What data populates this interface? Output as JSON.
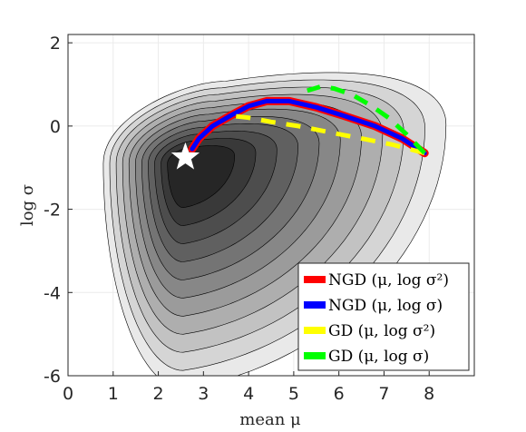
{
  "chart_data": {
    "type": "contour",
    "xlabel": "mean μ",
    "ylabel": "log σ",
    "xlim": [
      0,
      9
    ],
    "ylim": [
      -6,
      2.2
    ],
    "xticks": [
      0,
      1,
      2,
      3,
      4,
      5,
      6,
      7,
      8
    ],
    "yticks": [
      -6,
      -4,
      -2,
      0,
      2
    ],
    "xtick_labels": [
      "0",
      "1",
      "2",
      "3",
      "4",
      "5",
      "6",
      "7",
      "8"
    ],
    "ytick_labels": [
      "-6",
      "-4",
      "-2",
      "0",
      "2"
    ],
    "grid": true,
    "optimum": {
      "x": 2.6,
      "y": -0.75,
      "marker": "star",
      "color": "#ffffff"
    },
    "contour_levels": 11,
    "contour_center": {
      "x": 2.55,
      "y": -0.9
    },
    "series": [
      {
        "name": "NGD (μ, log σ²)",
        "color": "#ff0000",
        "style": "solid",
        "x": [
          7.9,
          7.4,
          6.8,
          6.1,
          5.5,
          4.9,
          4.4,
          4.0,
          3.6,
          3.2,
          2.9,
          2.75
        ],
        "y": [
          -0.65,
          -0.3,
          0.0,
          0.25,
          0.45,
          0.6,
          0.6,
          0.48,
          0.25,
          0.0,
          -0.3,
          -0.55
        ]
      },
      {
        "name": "NGD (μ, log σ)",
        "color": "#0000ff",
        "style": "solid",
        "x": [
          7.9,
          7.4,
          6.8,
          6.1,
          5.5,
          4.9,
          4.4,
          4.0,
          3.6,
          3.2,
          2.9,
          2.75
        ],
        "y": [
          -0.65,
          -0.3,
          0.0,
          0.25,
          0.45,
          0.6,
          0.6,
          0.48,
          0.25,
          0.0,
          -0.3,
          -0.55
        ]
      },
      {
        "name": "GD (μ, log σ²)",
        "color": "#ffff00",
        "style": "dashed",
        "x": [
          7.9,
          7.2,
          6.5,
          5.8,
          5.1,
          4.5,
          4.0,
          3.6
        ],
        "y": [
          -0.65,
          -0.45,
          -0.3,
          -0.15,
          0.0,
          0.1,
          0.2,
          0.25
        ]
      },
      {
        "name": "GD (μ, log σ)",
        "color": "#00ff00",
        "style": "dashed",
        "x": [
          7.9,
          7.5,
          7.1,
          6.7,
          6.3,
          5.9,
          5.6,
          5.3
        ],
        "y": [
          -0.65,
          -0.2,
          0.2,
          0.5,
          0.75,
          0.9,
          0.95,
          0.85
        ]
      }
    ],
    "legend": {
      "placement": "bottom-right"
    }
  }
}
